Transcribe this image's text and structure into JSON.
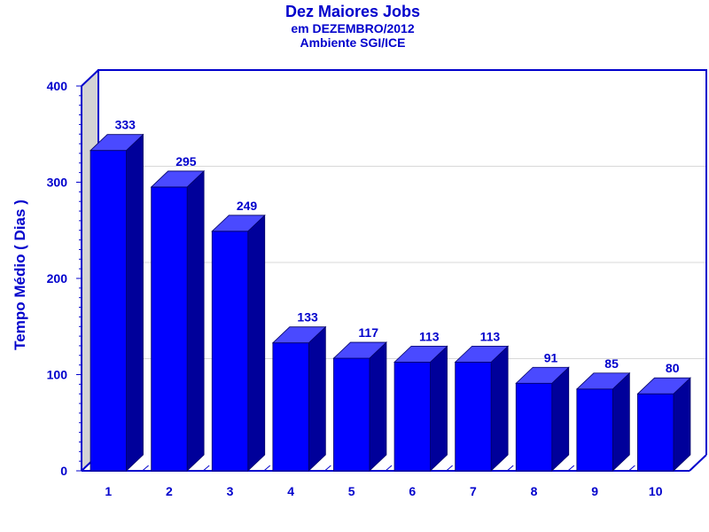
{
  "chart_data": {
    "type": "bar",
    "title": "Dez Maiores Jobs",
    "subtitle": [
      "em DEZEMBRO/2012",
      "Ambiente SGI/ICE"
    ],
    "xlabel": "",
    "ylabel": "Tempo Médio ( Dias )",
    "categories": [
      "1",
      "2",
      "3",
      "4",
      "5",
      "6",
      "7",
      "8",
      "9",
      "10"
    ],
    "values": [
      333,
      295,
      249,
      133,
      117,
      113,
      113,
      91,
      85,
      80
    ],
    "ylim": [
      0,
      400
    ],
    "yticks": [
      "0",
      "100",
      "200",
      "300",
      "400"
    ],
    "grid": true,
    "legend": "none",
    "bar_color": "#0000ff",
    "bar_side_color": "#00009a",
    "bar_top_color": "#4a4aff",
    "text_color": "#0000cc"
  }
}
